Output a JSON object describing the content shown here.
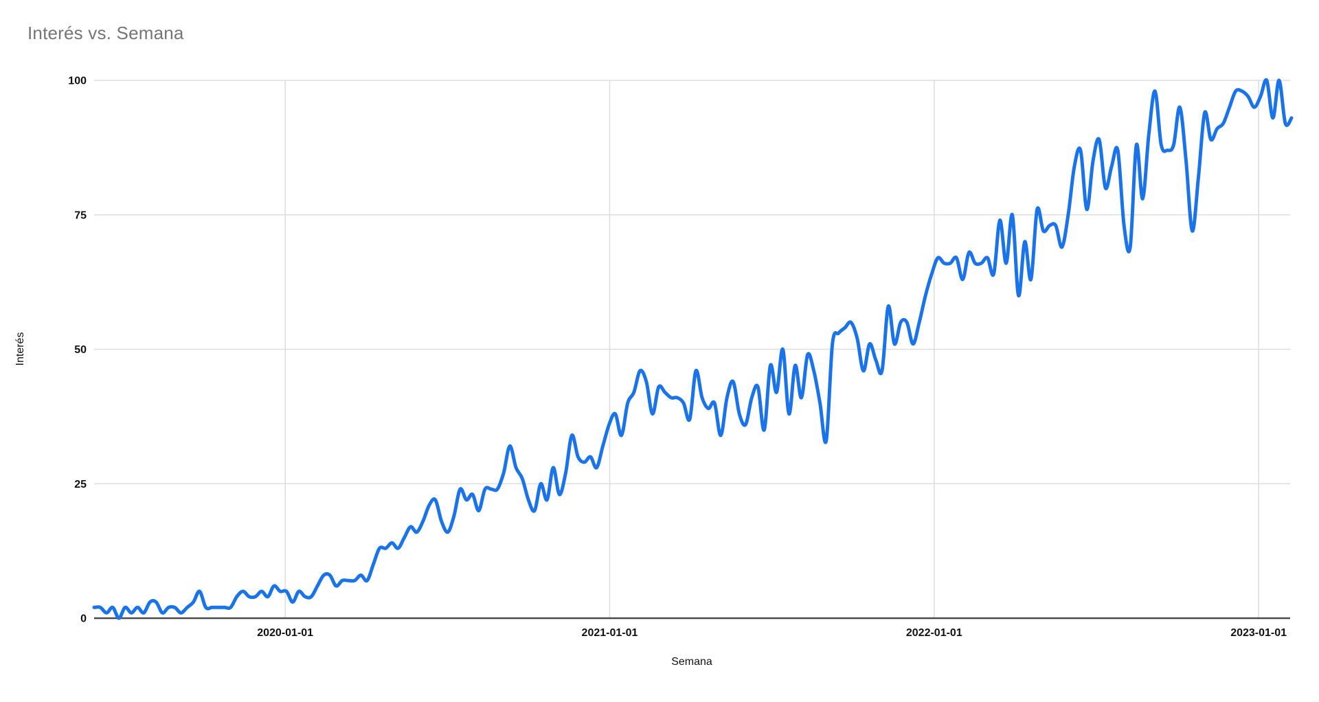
{
  "chart": {
    "title": "Interés vs. Semana",
    "x_axis_title": "Semana",
    "y_axis_title": "Interés"
  },
  "style": {
    "line_color": "#1a73e8",
    "grid_color": "#dedede",
    "axis_color": "#4a4a4a",
    "title_color": "#757575",
    "tick_label_color": "#111111",
    "background": "#ffffff"
  },
  "chart_data": {
    "type": "line",
    "title": "Interés vs. Semana",
    "xlabel": "Semana",
    "ylabel": "Interés",
    "ylim": [
      0,
      100
    ],
    "y_ticks": [
      0,
      25,
      50,
      75,
      100
    ],
    "grid": true,
    "legend": "none",
    "x_unit": "week",
    "x_start_date_approx": "2019-06",
    "x_tick_labels": [
      "2020-01-01",
      "2021-01-01",
      "2022-01-01",
      "2023-01-01"
    ],
    "x_tick_week_index": [
      30.8,
      83.1,
      135.4,
      187.7
    ],
    "series": [
      {
        "name": "Interés",
        "color": "#1a73e8",
        "values": [
          2,
          2,
          1,
          2,
          0,
          2,
          1,
          2,
          1,
          3,
          3,
          1,
          2,
          2,
          1,
          2,
          3,
          5,
          2,
          2,
          2,
          2,
          2,
          4,
          5,
          4,
          4,
          5,
          4,
          6,
          5,
          5,
          3,
          5,
          4,
          4,
          6,
          8,
          8,
          6,
          7,
          7,
          7,
          8,
          7,
          10,
          13,
          13,
          14,
          13,
          15,
          17,
          16,
          18,
          21,
          22,
          18,
          16,
          19,
          24,
          22,
          23,
          20,
          24,
          24,
          24,
          27,
          32,
          28,
          26,
          22,
          20,
          25,
          22,
          28,
          23,
          27,
          34,
          30,
          29,
          30,
          28,
          32,
          36,
          38,
          34,
          40,
          42,
          46,
          44,
          38,
          43,
          42,
          41,
          41,
          40,
          37,
          46,
          41,
          39,
          40,
          34,
          41,
          44,
          38,
          36,
          41,
          43,
          35,
          47,
          42,
          50,
          38,
          47,
          41,
          49,
          46,
          40,
          33,
          51,
          53,
          54,
          55,
          52,
          46,
          51,
          48,
          46,
          58,
          51,
          55,
          55,
          51,
          55,
          60,
          64,
          67,
          66,
          66,
          67,
          63,
          68,
          66,
          66,
          67,
          64,
          74,
          66,
          75,
          60,
          70,
          63,
          76,
          72,
          73,
          73,
          69,
          75,
          84,
          87,
          76,
          85,
          89,
          80,
          84,
          87,
          73,
          69,
          88,
          78,
          90,
          98,
          88,
          87,
          88,
          95,
          85,
          72,
          82,
          94,
          89,
          91,
          92,
          95,
          98,
          98,
          97,
          95,
          97,
          100,
          93,
          100,
          92,
          93
        ]
      }
    ]
  }
}
